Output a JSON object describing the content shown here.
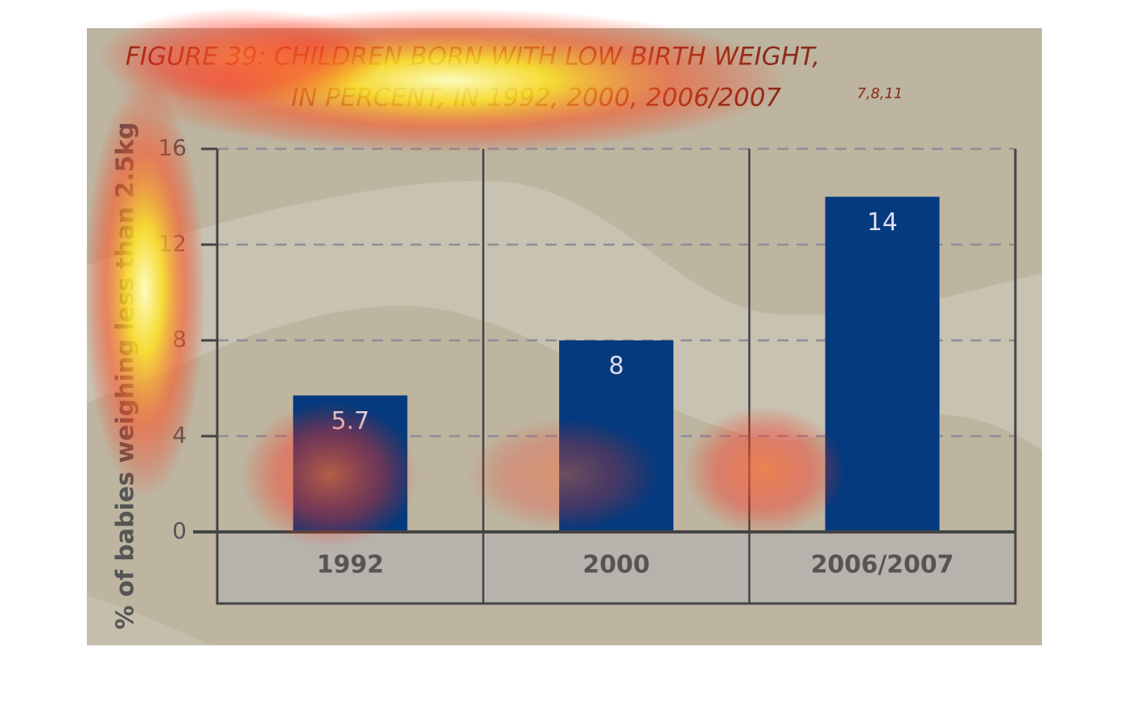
{
  "chart_data": {
    "type": "bar",
    "title": "FIGURE 39: CHILDREN BORN WITH LOW BIRTH WEIGHT,",
    "subtitle": "IN PERCENT, IN 1992, 2000, 2006/2007",
    "title_note": "7,8,11",
    "y_label": "% of babies weighing less than 2.5kg",
    "categories": [
      "1992",
      "2000",
      "2006/2007"
    ],
    "values": [
      5.7,
      8,
      14
    ],
    "color": "#053a7e",
    "ylim": [
      0,
      16
    ],
    "yticks": [
      0,
      4,
      8,
      12,
      16
    ],
    "grid": true
  }
}
